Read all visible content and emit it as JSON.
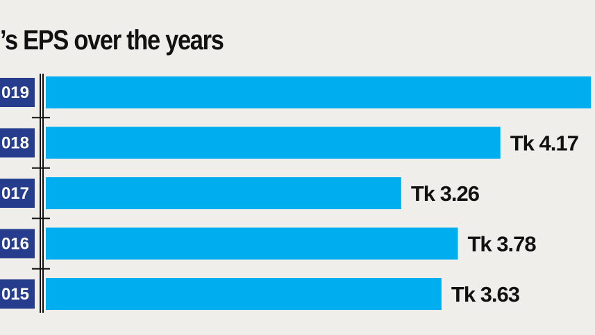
{
  "title_text": "’s EPS over the years",
  "colors": {
    "background": "#efeeea",
    "bar": "#00aeef",
    "year_box": "#263c8c",
    "axis": "#111111"
  },
  "chart_data": {
    "type": "bar",
    "orientation": "horizontal",
    "title": "’s EPS over the years",
    "categories": [
      "019",
      "018",
      "017",
      "016",
      "015"
    ],
    "values": [
      5.0,
      4.17,
      3.26,
      3.78,
      3.63
    ],
    "data_labels": [
      "",
      "Tk 4.17",
      "Tk 3.26",
      "Tk 3.78",
      "Tk 3.63"
    ],
    "xlabel": "",
    "ylabel": "",
    "xlim": [
      0,
      5.0
    ],
    "grid": false,
    "legend": "none"
  }
}
